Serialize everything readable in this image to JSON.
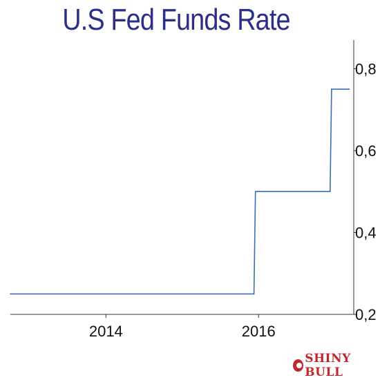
{
  "chart_data": {
    "type": "line",
    "title": "U.S Fed Funds Rate",
    "xlabel": "",
    "ylabel": "",
    "x_ticks": [
      "2014",
      "2016"
    ],
    "y_ticks": [
      "0,2",
      "0,4",
      "0,6",
      "0,8"
    ],
    "y_axis_position": "right",
    "grid": false,
    "xlim": [
      "2012-10-01",
      "2017-03-31"
    ],
    "ylim": [
      0.2,
      0.87
    ],
    "series": [
      {
        "color": "#3a6fb0",
        "points": [
          {
            "x": "2012-10-01",
            "y": 0.25
          },
          {
            "x": "2015-12-10",
            "y": 0.25
          },
          {
            "x": "2015-12-17",
            "y": 0.5
          },
          {
            "x": "2016-12-08",
            "y": 0.5
          },
          {
            "x": "2016-12-15",
            "y": 0.75
          },
          {
            "x": "2017-03-10",
            "y": 0.75
          }
        ]
      }
    ]
  },
  "watermark": {
    "text": "SHINY BULL",
    "color": "#c0282d"
  }
}
